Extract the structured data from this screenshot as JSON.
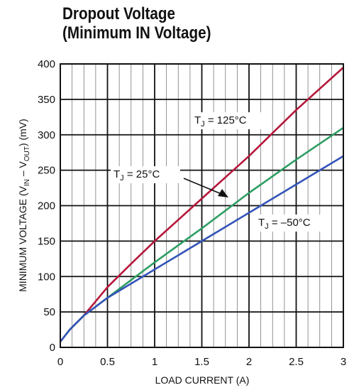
{
  "chart_data": {
    "type": "line",
    "title_line1": "Dropout Voltage",
    "title_line2": "(Minimum IN Voltage)",
    "xlabel": "LOAD CURRENT (A)",
    "ylabel": {
      "prefix": "MINIMUM VOLTAGE (V",
      "sub1": "IN",
      "mid": " – V",
      "sub2": "OUT",
      "suffix": ") (mV)"
    },
    "xlim": [
      0,
      3
    ],
    "ylim": [
      0,
      400
    ],
    "xticks": [
      "0",
      "0.5",
      "1",
      "1.5",
      "2",
      "2.5",
      "3"
    ],
    "yticks": [
      "0",
      "50",
      "100",
      "150",
      "200",
      "250",
      "300",
      "350",
      "400"
    ],
    "grid": true,
    "series": [
      {
        "name": "T_J = 125°C",
        "label_main": "T",
        "label_sub": "J",
        "label_rest": " = 125°C",
        "color": "#b5173a",
        "points": [
          [
            0,
            8
          ],
          [
            0.1,
            25
          ],
          [
            0.25,
            45
          ],
          [
            0.5,
            85
          ],
          [
            0.75,
            118
          ],
          [
            1,
            150
          ],
          [
            1.5,
            210
          ],
          [
            2,
            270
          ],
          [
            2.5,
            335
          ],
          [
            3,
            395
          ]
        ]
      },
      {
        "name": "T_J = 25°C",
        "label_main": "T",
        "label_sub": "J",
        "label_rest": " = 25°C",
        "color": "#2e9e63",
        "points": [
          [
            0,
            8
          ],
          [
            0.1,
            25
          ],
          [
            0.25,
            45
          ],
          [
            0.5,
            70
          ],
          [
            1,
            120
          ],
          [
            1.5,
            168
          ],
          [
            2,
            218
          ],
          [
            2.5,
            265
          ],
          [
            3,
            310
          ]
        ]
      },
      {
        "name": "T_J = –50°C",
        "label_main": "T",
        "label_sub": "J",
        "label_rest": " = –50°C",
        "color": "#3454b8",
        "points": [
          [
            0,
            8
          ],
          [
            0.1,
            25
          ],
          [
            0.25,
            45
          ],
          [
            0.5,
            70
          ],
          [
            1,
            110
          ],
          [
            1.5,
            150
          ],
          [
            2,
            190
          ],
          [
            2.5,
            230
          ],
          [
            3,
            270
          ]
        ]
      }
    ]
  }
}
